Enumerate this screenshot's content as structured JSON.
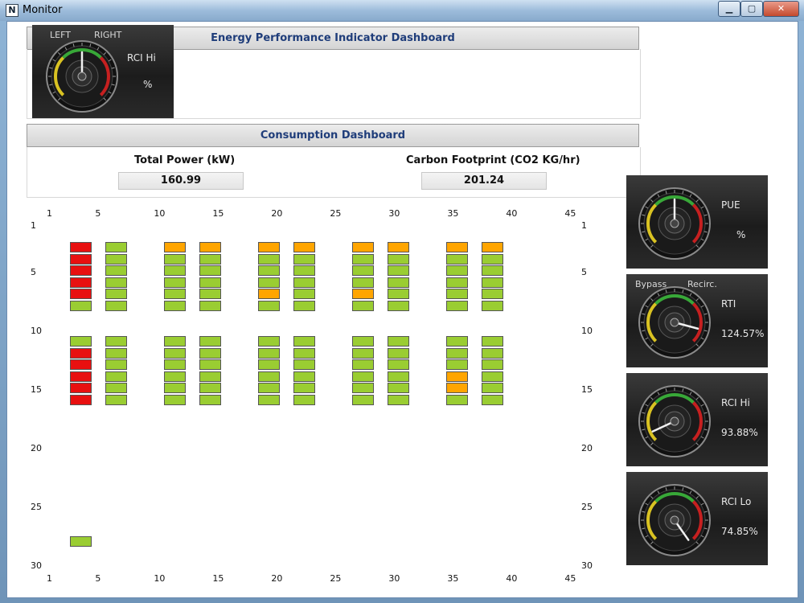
{
  "window": {
    "title": "Monitor",
    "icon_letter": "N",
    "minimize_glyph": "▁",
    "maximize_glyph": "▢",
    "close_glyph": "✕"
  },
  "energy_dashboard": {
    "title": "Energy Performance Indicator Dashboard"
  },
  "consumption_dashboard": {
    "title": "Consumption Dashboard",
    "total_power_label": "Total Power (kW)",
    "total_power_value": "160.99",
    "carbon_label": "Carbon Footprint (CO2 KG/hr)",
    "carbon_value": "201.24"
  },
  "top_gauge": {
    "left_label": "LEFT",
    "right_label": "RIGHT",
    "title": "RCI Hi",
    "value": "%",
    "needle_angle": 0
  },
  "gauges": [
    {
      "title": "PUE",
      "value": "%",
      "side_left": "",
      "side_right": "",
      "needle_angle": 0
    },
    {
      "title": "RTI",
      "value": "124.57%",
      "side_left": "Bypass",
      "side_right": "Recirc.",
      "needle_angle": 105
    },
    {
      "title": "RCI Hi",
      "value": "93.88%",
      "side_left": "",
      "side_right": "",
      "needle_angle": -115
    },
    {
      "title": "RCI Lo",
      "value": "74.85%",
      "side_left": "",
      "side_right": "",
      "needle_angle": 145
    }
  ],
  "grid": {
    "x_ticks": [
      "1",
      "5",
      "10",
      "15",
      "20",
      "25",
      "30",
      "35",
      "40",
      "45"
    ],
    "y_ticks": [
      "1",
      "5",
      "10",
      "15",
      "20",
      "25",
      "30"
    ],
    "colors": {
      "green": "#9acd32",
      "orange": "#ffa500",
      "red": "#e81010"
    },
    "columns": [
      {
        "col": 3,
        "top": [
          "red",
          "red",
          "red",
          "red",
          "red",
          "green"
        ],
        "bottom": [
          "green",
          "red",
          "red",
          "red",
          "red",
          "red"
        ]
      },
      {
        "col": 6,
        "top": [
          "green",
          "green",
          "green",
          "green",
          "green",
          "green"
        ],
        "bottom": [
          "green",
          "green",
          "green",
          "green",
          "green",
          "green"
        ]
      },
      {
        "col": 11,
        "top": [
          "orange",
          "green",
          "green",
          "green",
          "green",
          "green"
        ],
        "bottom": [
          "green",
          "green",
          "green",
          "green",
          "green",
          "green"
        ]
      },
      {
        "col": 14,
        "top": [
          "orange",
          "green",
          "green",
          "green",
          "green",
          "green"
        ],
        "bottom": [
          "green",
          "green",
          "green",
          "green",
          "green",
          "green"
        ]
      },
      {
        "col": 19,
        "top": [
          "orange",
          "green",
          "green",
          "green",
          "orange",
          "green"
        ],
        "bottom": [
          "green",
          "green",
          "green",
          "green",
          "green",
          "green"
        ]
      },
      {
        "col": 22,
        "top": [
          "orange",
          "green",
          "green",
          "green",
          "green",
          "green"
        ],
        "bottom": [
          "green",
          "green",
          "green",
          "green",
          "green",
          "green"
        ]
      },
      {
        "col": 27,
        "top": [
          "orange",
          "green",
          "green",
          "green",
          "orange",
          "green"
        ],
        "bottom": [
          "green",
          "green",
          "green",
          "green",
          "green",
          "green"
        ]
      },
      {
        "col": 30,
        "top": [
          "orange",
          "green",
          "green",
          "green",
          "green",
          "green"
        ],
        "bottom": [
          "green",
          "green",
          "green",
          "green",
          "green",
          "green"
        ]
      },
      {
        "col": 35,
        "top": [
          "orange",
          "green",
          "green",
          "green",
          "green",
          "green"
        ],
        "bottom": [
          "green",
          "green",
          "green",
          "orange",
          "orange",
          "green"
        ]
      },
      {
        "col": 38,
        "top": [
          "orange",
          "green",
          "green",
          "green",
          "green",
          "green"
        ],
        "bottom": [
          "green",
          "green",
          "green",
          "green",
          "green",
          "green"
        ]
      }
    ],
    "extra_cells": [
      {
        "col": 3,
        "row": 28,
        "color": "green"
      }
    ]
  }
}
